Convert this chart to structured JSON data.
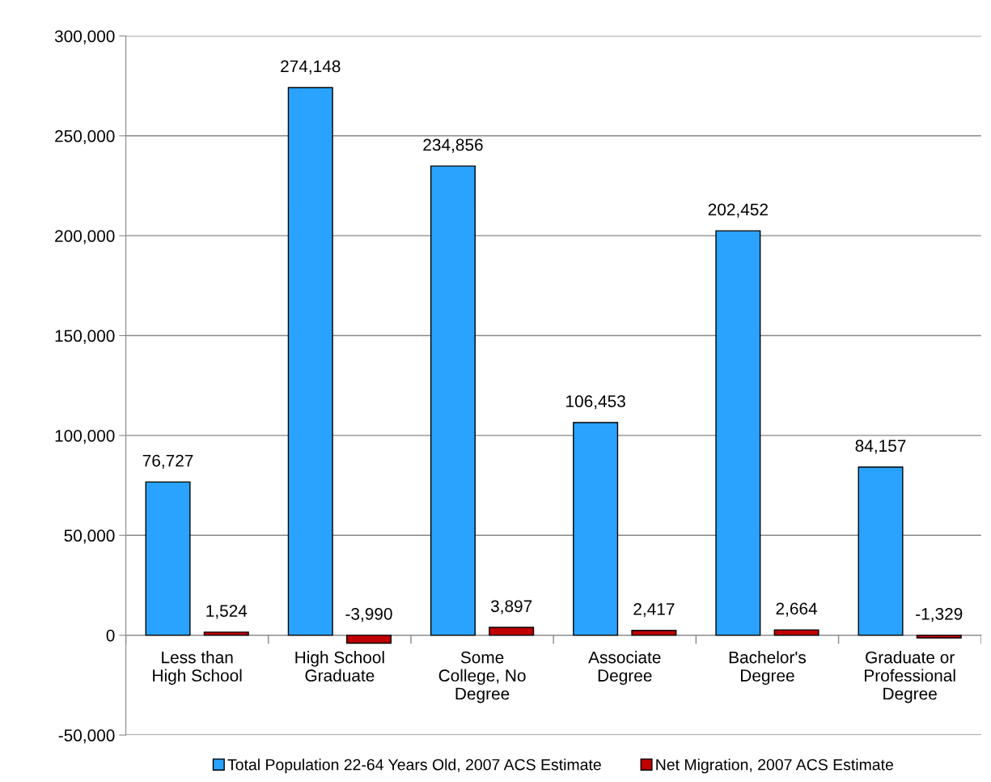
{
  "chart_data": {
    "type": "bar",
    "categories": [
      "Less than\nHigh School",
      "High School\nGraduate",
      "Some\nCollege, No\nDegree",
      "Associate\nDegree",
      "Bachelor's\nDegree",
      "Graduate or\nProfessional\nDegree"
    ],
    "series": [
      {
        "name": "Total Population 22-64 Years Old, 2007 ACS Estimate",
        "color": "#29a3ff",
        "values": [
          76727,
          274148,
          234856,
          106453,
          202452,
          84157
        ],
        "value_labels": [
          "76,727",
          "274,148",
          "234,856",
          "106,453",
          "202,452",
          "84,157"
        ]
      },
      {
        "name": "Net Migration, 2007 ACS Estimate",
        "color": "#c00000",
        "values": [
          1524,
          -3990,
          3897,
          2417,
          2664,
          -1329
        ],
        "value_labels": [
          "1,524",
          "-3,990",
          "3,897",
          "2,417",
          "2,664",
          "-1,329"
        ]
      }
    ],
    "ylim": [
      -50000,
      300000
    ],
    "yticks": [
      {
        "value": -50000,
        "label": "-50,000"
      },
      {
        "value": 0,
        "label": "0"
      },
      {
        "value": 50000,
        "label": "50,000"
      },
      {
        "value": 100000,
        "label": "100,000"
      },
      {
        "value": 150000,
        "label": "150,000"
      },
      {
        "value": 200000,
        "label": "200,000"
      },
      {
        "value": 250000,
        "label": "250,000"
      },
      {
        "value": 300000,
        "label": "300,000"
      }
    ],
    "grid": "y",
    "legend": "bottom"
  }
}
